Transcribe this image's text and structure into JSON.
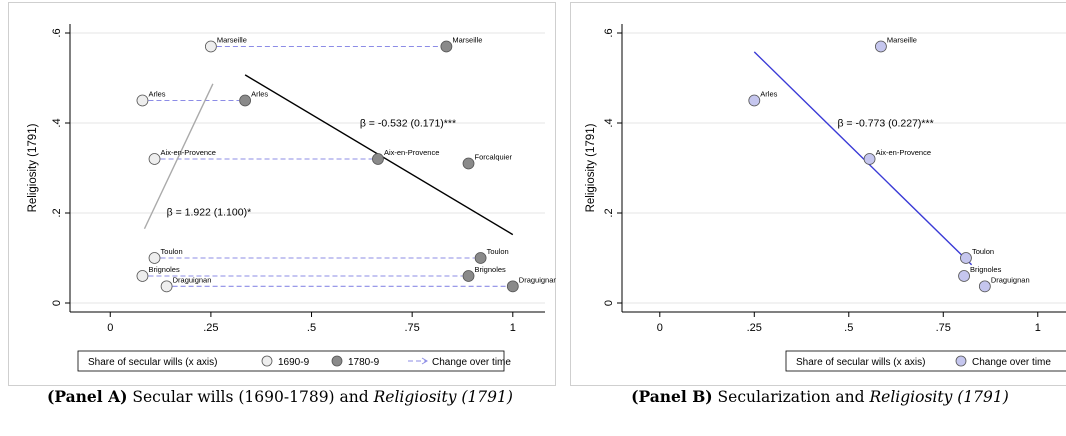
{
  "chart_data": [
    {
      "type": "scatter",
      "panel": "A",
      "ylabel": "Religiosity (1791)",
      "xlabel": "",
      "xlim": [
        -0.1,
        1.08
      ],
      "ylim": [
        -0.02,
        0.62
      ],
      "xticks": [
        "0",
        ".25",
        ".5",
        ".75",
        "1"
      ],
      "xtick_values": [
        0,
        0.25,
        0.5,
        0.75,
        1
      ],
      "yticks": [
        "0",
        ".2",
        ".4",
        ".6"
      ],
      "ytick_values": [
        0,
        0.2,
        0.4,
        0.6
      ],
      "grid": true,
      "legend": {
        "placement": "bottom",
        "items": [
          "Share of secular wills (x axis)",
          "1690-9",
          "1780-9",
          "Change over time"
        ]
      },
      "series": [
        {
          "name": "1690-9",
          "color": "#eeeeee",
          "points": [
            {
              "label": "Marseille",
              "x": 0.25,
              "y": 0.57
            },
            {
              "label": "Arles",
              "x": 0.08,
              "y": 0.45
            },
            {
              "label": "Aix-en-Provence",
              "x": 0.11,
              "y": 0.32
            },
            {
              "label": "Toulon",
              "x": 0.11,
              "y": 0.1
            },
            {
              "label": "Brignoles",
              "x": 0.08,
              "y": 0.06
            },
            {
              "label": "Draguignan",
              "x": 0.14,
              "y": 0.037
            }
          ]
        },
        {
          "name": "1780-9",
          "color": "#8a8a8a",
          "points": [
            {
              "label": "Marseille",
              "x": 0.835,
              "y": 0.57
            },
            {
              "label": "Arles",
              "x": 0.335,
              "y": 0.45
            },
            {
              "label": "Aix-en-Provence",
              "x": 0.665,
              "y": 0.32
            },
            {
              "label": "Forcalquier",
              "x": 0.89,
              "y": 0.31
            },
            {
              "label": "Toulon",
              "x": 0.92,
              "y": 0.1
            },
            {
              "label": "Brignoles",
              "x": 0.89,
              "y": 0.06
            },
            {
              "label": "Draguignan",
              "x": 1.0,
              "y": 0.037
            }
          ]
        }
      ],
      "fit_lines": [
        {
          "x": [
            0.085,
            0.255
          ],
          "y": [
            0.165,
            0.487
          ],
          "color": "#aaaaaa",
          "annotation": "β = 1.922 (1.100)*",
          "ann_x": 0.14,
          "ann_y": 0.195
        },
        {
          "x": [
            0.335,
            1.0
          ],
          "y": [
            0.507,
            0.152
          ],
          "color": "#000000",
          "annotation": "β = -0.532 (0.171)***",
          "ann_x": 0.62,
          "ann_y": 0.392
        }
      ],
      "change_arrows": [
        {
          "from": [
            0.25,
            0.57
          ],
          "to": [
            0.835,
            0.57
          ]
        },
        {
          "from": [
            0.08,
            0.45
          ],
          "to": [
            0.335,
            0.45
          ]
        },
        {
          "from": [
            0.11,
            0.32
          ],
          "to": [
            0.665,
            0.32
          ]
        },
        {
          "from": [
            0.11,
            0.1
          ],
          "to": [
            0.92,
            0.1
          ]
        },
        {
          "from": [
            0.08,
            0.06
          ],
          "to": [
            0.89,
            0.06
          ]
        },
        {
          "from": [
            0.14,
            0.037
          ],
          "to": [
            1.0,
            0.037
          ]
        }
      ]
    },
    {
      "type": "scatter",
      "panel": "B",
      "ylabel": "Religiosity (1791)",
      "xlabel": "",
      "xlim": [
        -0.1,
        1.08
      ],
      "ylim": [
        -0.02,
        0.62
      ],
      "xticks": [
        "0",
        ".25",
        ".5",
        ".75",
        "1"
      ],
      "xtick_values": [
        0,
        0.25,
        0.5,
        0.75,
        1
      ],
      "yticks": [
        "0",
        ".2",
        ".4",
        ".6"
      ],
      "ytick_values": [
        0,
        0.2,
        0.4,
        0.6
      ],
      "grid": true,
      "legend": {
        "placement": "bottom",
        "items": [
          "Share of secular wills (x axis)",
          "Change over time"
        ]
      },
      "series": [
        {
          "name": "Change over time",
          "color": "#c5c6ee",
          "points": [
            {
              "label": "Marseille",
              "x": 0.585,
              "y": 0.57
            },
            {
              "label": "Arles",
              "x": 0.25,
              "y": 0.45
            },
            {
              "label": "Aix-en-Provence",
              "x": 0.555,
              "y": 0.32
            },
            {
              "label": "Toulon",
              "x": 0.81,
              "y": 0.1
            },
            {
              "label": "Brignoles",
              "x": 0.805,
              "y": 0.06
            },
            {
              "label": "Draguignan",
              "x": 0.86,
              "y": 0.037
            }
          ]
        }
      ],
      "fit_lines": [
        {
          "x": [
            0.25,
            0.825
          ],
          "y": [
            0.558,
            0.085
          ],
          "color": "#3a3ad6",
          "annotation": "β = -0.773 (0.227)***",
          "ann_x": 0.47,
          "ann_y": 0.392
        }
      ]
    }
  ],
  "captions": {
    "a": {
      "label": "(Panel A)",
      "text_1": " Secular wills (1690-1789) and ",
      "italic": "Religiosity (1791)"
    },
    "b": {
      "label": "(Panel B)",
      "text_1": " Secularization and ",
      "italic": "Religiosity (1791)"
    }
  }
}
